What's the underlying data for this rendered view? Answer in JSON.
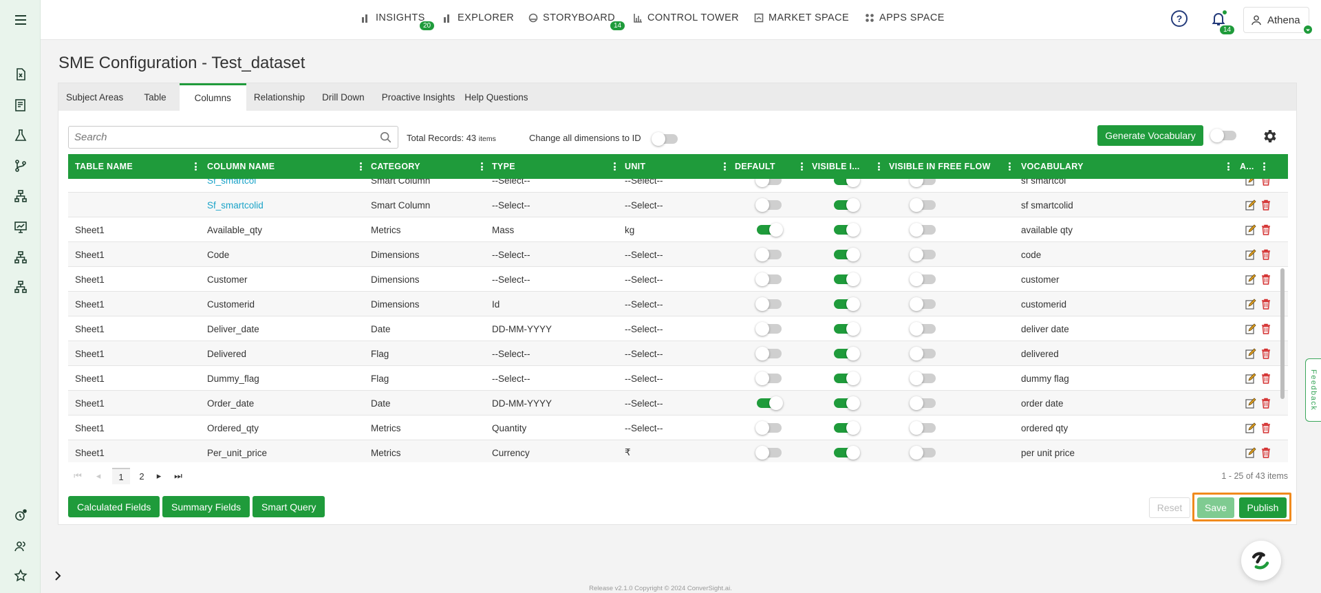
{
  "nav": {
    "items": [
      {
        "label": "INSIGHTS",
        "badge": "20",
        "icon": "bar-chart-icon"
      },
      {
        "label": "EXPLORER",
        "icon": "bar-chart-icon"
      },
      {
        "label": "STORYBOARD",
        "badge": "14",
        "icon": "storyboard-icon"
      },
      {
        "label": "CONTROL TOWER",
        "icon": "tower-icon"
      },
      {
        "label": "MARKET SPACE",
        "icon": "market-icon"
      },
      {
        "label": "APPS SPACE",
        "icon": "apps-icon"
      }
    ],
    "help_glyph": "?",
    "notifications_badge": "14",
    "user_name": "Athena"
  },
  "page": {
    "title": "SME Configuration - Test_dataset"
  },
  "tabs": [
    "Subject Areas",
    "Table",
    "Columns",
    "Relationship",
    "Drill Down",
    "Proactive Insights",
    "Help Questions"
  ],
  "active_tab": "Columns",
  "toolbar": {
    "search_placeholder": "Search",
    "total_label": "Total Records: 43",
    "total_unit": "items",
    "change_dims_label": "Change all dimensions to ID",
    "generate_vocab_label": "Generate Vocabulary"
  },
  "table": {
    "columns": [
      "TABLE NAME",
      "COLUMN NAME",
      "CATEGORY",
      "TYPE",
      "UNIT",
      "DEFAULT",
      "VISIBLE I...",
      "VISIBLE IN FREE FLOW",
      "VOCABULARY",
      "A..."
    ],
    "rows": [
      {
        "table": "",
        "column": "Sf_smartcol",
        "link": true,
        "category": "Smart Column",
        "type": "--Select--",
        "unit": "--Select--",
        "default": false,
        "visible": true,
        "free_flow": false,
        "vocab": "sf smartcol"
      },
      {
        "table": "",
        "column": "Sf_smartcolid",
        "link": true,
        "category": "Smart Column",
        "type": "--Select--",
        "unit": "--Select--",
        "default": false,
        "visible": true,
        "free_flow": false,
        "vocab": "sf smartcolid"
      },
      {
        "table": "Sheet1",
        "column": "Available_qty",
        "link": false,
        "category": "Metrics",
        "type": "Mass",
        "unit": "kg",
        "default": true,
        "visible": true,
        "free_flow": false,
        "vocab": "available qty"
      },
      {
        "table": "Sheet1",
        "column": "Code",
        "link": false,
        "category": "Dimensions",
        "type": "--Select--",
        "unit": "--Select--",
        "default": false,
        "visible": true,
        "free_flow": false,
        "vocab": "code"
      },
      {
        "table": "Sheet1",
        "column": "Customer",
        "link": false,
        "category": "Dimensions",
        "type": "--Select--",
        "unit": "--Select--",
        "default": false,
        "visible": true,
        "free_flow": false,
        "vocab": "customer"
      },
      {
        "table": "Sheet1",
        "column": "Customerid",
        "link": false,
        "category": "Dimensions",
        "type": "Id",
        "unit": "--Select--",
        "default": false,
        "visible": true,
        "free_flow": false,
        "vocab": "customerid"
      },
      {
        "table": "Sheet1",
        "column": "Deliver_date",
        "link": false,
        "category": "Date",
        "type": "DD-MM-YYYY",
        "unit": "--Select--",
        "default": false,
        "visible": true,
        "free_flow": false,
        "vocab": "deliver date"
      },
      {
        "table": "Sheet1",
        "column": "Delivered",
        "link": false,
        "category": "Flag",
        "type": "--Select--",
        "unit": "--Select--",
        "default": false,
        "visible": true,
        "free_flow": false,
        "vocab": "delivered"
      },
      {
        "table": "Sheet1",
        "column": "Dummy_flag",
        "link": false,
        "category": "Flag",
        "type": "--Select--",
        "unit": "--Select--",
        "default": false,
        "visible": true,
        "free_flow": false,
        "vocab": "dummy flag"
      },
      {
        "table": "Sheet1",
        "column": "Order_date",
        "link": false,
        "category": "Date",
        "type": "DD-MM-YYYY",
        "unit": "--Select--",
        "default": true,
        "visible": true,
        "free_flow": false,
        "vocab": "order date"
      },
      {
        "table": "Sheet1",
        "column": "Ordered_qty",
        "link": false,
        "category": "Metrics",
        "type": "Quantity",
        "unit": "--Select--",
        "default": false,
        "visible": true,
        "free_flow": false,
        "vocab": "ordered qty"
      },
      {
        "table": "Sheet1",
        "column": "Per_unit_price",
        "link": false,
        "category": "Metrics",
        "type": "Currency",
        "unit": "₹",
        "default": false,
        "visible": true,
        "free_flow": false,
        "vocab": "per unit price"
      }
    ]
  },
  "pager": {
    "pages": [
      "1",
      "2"
    ],
    "current": "1",
    "summary": "1 - 25 of 43 items"
  },
  "actions": {
    "calculated": "Calculated Fields",
    "summary": "Summary Fields",
    "smart_query": "Smart Query",
    "reset": "Reset",
    "save": "Save",
    "publish": "Publish"
  },
  "feedback": "Feedback",
  "footer": "Release v2.1.0 Copyright © 2024 ConverSight.ai.",
  "colors": {
    "accent": "#1f9b3b",
    "link": "#1aa3c8",
    "highlight": "#f08a1d",
    "delete": "#d32f2f"
  }
}
